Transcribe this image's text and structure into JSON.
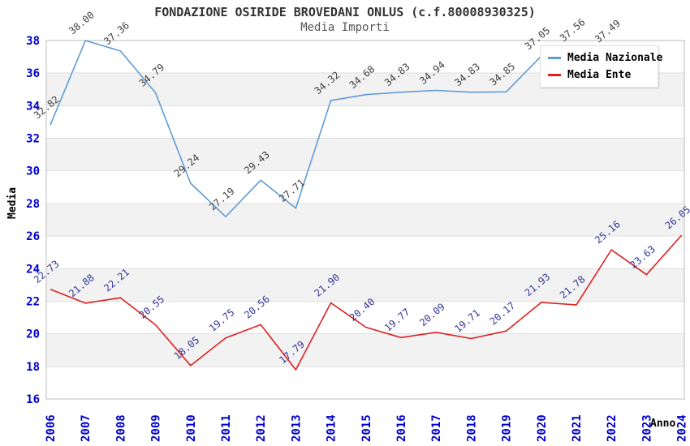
{
  "header": {
    "title": "FONDAZIONE OSIRIDE BROVEDANI ONLUS (c.f.80008930325)",
    "subtitle": "Media Importi"
  },
  "axes": {
    "y_label": "Media",
    "x_label": "Anno",
    "y_ticks": [
      16,
      18,
      20,
      22,
      24,
      26,
      28,
      30,
      32,
      34,
      36,
      38
    ],
    "tick_color": "#0000cc"
  },
  "legend": {
    "items": [
      {
        "label": "Media Nazionale",
        "color": "#5f9bd5"
      },
      {
        "label": "Media Ente",
        "color": "#dd2020"
      }
    ]
  },
  "chart_data": {
    "type": "line",
    "title": "FONDAZIONE OSIRIDE BROVEDANI ONLUS (c.f.80008930325)",
    "subtitle": "Media Importi",
    "xlabel": "Anno",
    "ylabel": "Media",
    "ylim": [
      16,
      38
    ],
    "x": [
      "2006",
      "2007",
      "2008",
      "2009",
      "2010",
      "2011",
      "2012",
      "2013",
      "2014",
      "2015",
      "2016",
      "2017",
      "2018",
      "2019",
      "2020",
      "2021",
      "2022",
      "2023",
      "2024"
    ],
    "series": [
      {
        "name": "Media Nazionale",
        "color": "#5f9bd5",
        "label_color": "#404040",
        "values": [
          32.82,
          38.0,
          37.36,
          34.79,
          29.24,
          27.19,
          29.43,
          27.71,
          34.32,
          34.68,
          34.83,
          34.94,
          34.83,
          34.85,
          37.05,
          37.56,
          37.49,
          null,
          null
        ]
      },
      {
        "name": "Media Ente",
        "color": "#dd2020",
        "label_color": "#333399",
        "values": [
          22.73,
          21.88,
          22.21,
          20.55,
          18.05,
          19.75,
          20.56,
          17.79,
          21.9,
          20.4,
          19.77,
          20.09,
          19.71,
          20.17,
          21.93,
          21.78,
          25.16,
          23.63,
          26.05
        ]
      }
    ],
    "grid": "on",
    "band_color": "#f2f2f2",
    "legend_position": "top-right"
  }
}
